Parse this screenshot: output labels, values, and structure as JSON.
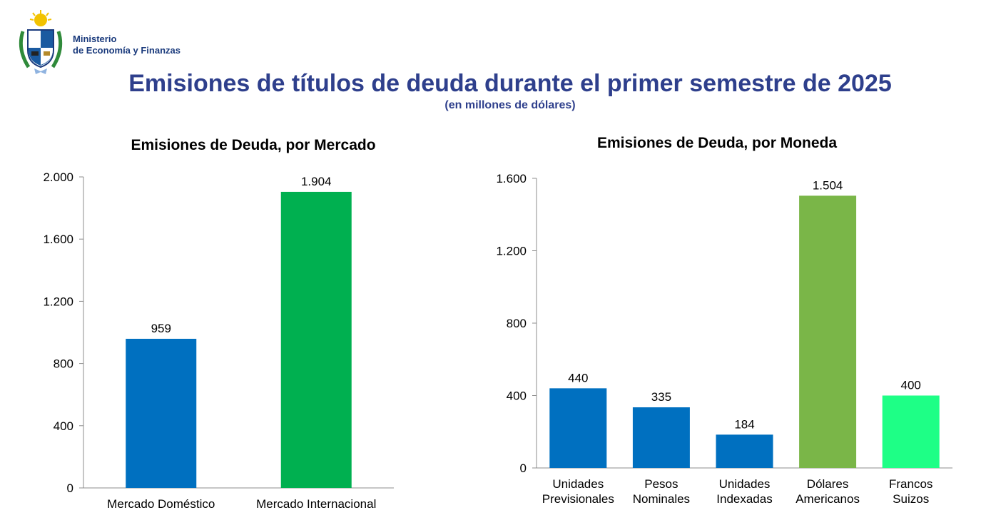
{
  "header": {
    "ministry_line1": "Ministerio",
    "ministry_line2": "de Economía y Finanzas",
    "title": "Emisiones de títulos de deuda durante el primer semestre de 2025",
    "subtitle": "(en millones de dólares)"
  },
  "colors": {
    "title": "#2e3f8c",
    "blue": "#0070c0",
    "dark_green": "#00b050",
    "light_green": "#7ab648",
    "mint": "#1eff86"
  },
  "chart_data": [
    {
      "type": "bar",
      "title": "Emisiones de Deuda, por Mercado",
      "categories": [
        "Mercado Doméstico",
        "Mercado Internacional"
      ],
      "values": [
        959,
        1904
      ],
      "value_labels": [
        "959",
        "1.904"
      ],
      "colors": [
        "#0070c0",
        "#00b050"
      ],
      "ylim": [
        0,
        2000
      ],
      "yticks": [
        0,
        400,
        800,
        1200,
        1600,
        2000
      ],
      "ytick_labels": [
        "0",
        "400",
        "800",
        "1.200",
        "1.600",
        "2.000"
      ],
      "grid": false
    },
    {
      "type": "bar",
      "title": "Emisiones de Deuda, por Moneda",
      "categories": [
        [
          "Unidades",
          "Previsionales"
        ],
        [
          "Pesos",
          "Nominales"
        ],
        [
          "Unidades",
          "Indexadas"
        ],
        [
          "Dólares",
          "Americanos"
        ],
        [
          "Francos",
          "Suizos"
        ]
      ],
      "values": [
        440,
        335,
        184,
        1504,
        400
      ],
      "value_labels": [
        "440",
        "335",
        "184",
        "1.504",
        "400"
      ],
      "colors": [
        "#0070c0",
        "#0070c0",
        "#0070c0",
        "#7ab648",
        "#1eff86"
      ],
      "ylim": [
        0,
        1600
      ],
      "yticks": [
        0,
        400,
        800,
        1200,
        1600
      ],
      "ytick_labels": [
        "0",
        "400",
        "800",
        "1.200",
        "1.600"
      ],
      "grid": false
    }
  ]
}
